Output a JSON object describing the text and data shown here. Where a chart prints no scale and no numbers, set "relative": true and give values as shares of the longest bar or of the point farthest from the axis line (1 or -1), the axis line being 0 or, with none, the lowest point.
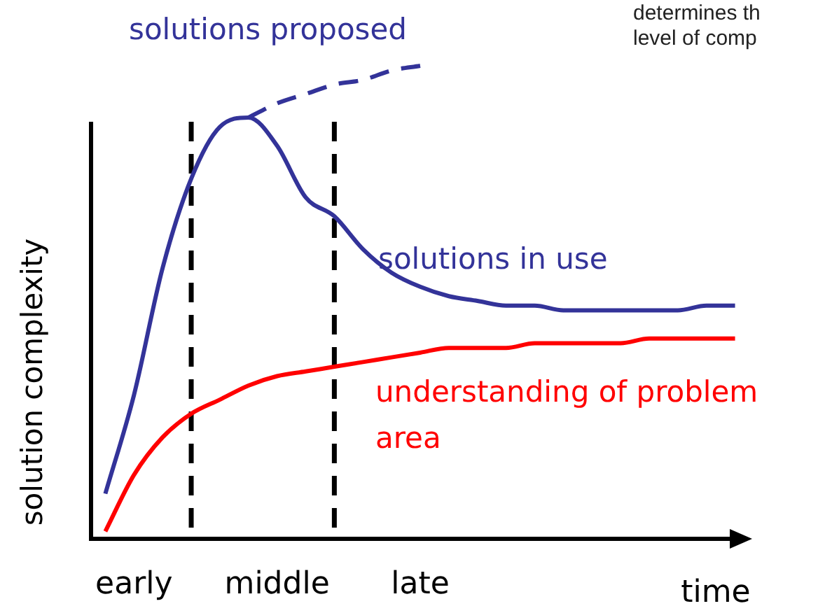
{
  "chart_data": {
    "type": "line",
    "relative": true,
    "ylabel": "solution complexity",
    "xlabel": "time",
    "categories": [
      null,
      "early",
      null,
      null,
      null,
      null,
      "middle",
      null,
      null,
      null,
      null,
      "late",
      null,
      null,
      null,
      null,
      null,
      null,
      null,
      null,
      null,
      null,
      null
    ],
    "series": [
      {
        "name": "solutions proposed",
        "color": "#333399",
        "line_style": "dashed",
        "values": [
          null,
          null,
          null,
          null,
          null,
          0.89,
          0.92,
          0.94,
          0.96,
          0.97,
          0.99,
          1.0,
          null,
          null,
          null,
          null,
          null,
          null,
          null,
          null,
          null,
          null,
          null
        ]
      },
      {
        "name": "solutions in use",
        "color": "#333399",
        "values": [
          0.09,
          0.3,
          0.57,
          0.76,
          0.87,
          0.89,
          0.83,
          0.72,
          0.68,
          0.61,
          0.56,
          0.53,
          0.51,
          0.5,
          0.49,
          0.49,
          0.48,
          0.48,
          0.48,
          0.48,
          0.48,
          0.49,
          0.49
        ]
      },
      {
        "name": "understanding of problem area",
        "color": "#ff0000",
        "values": [
          0.01,
          0.13,
          0.21,
          0.26,
          0.29,
          0.32,
          0.34,
          0.35,
          0.36,
          0.37,
          0.38,
          0.39,
          0.4,
          0.4,
          0.4,
          0.41,
          0.41,
          0.41,
          0.41,
          0.42,
          0.42,
          0.42,
          0.42
        ]
      }
    ],
    "annotations": [
      "determines th",
      "level of comp"
    ],
    "legend": false,
    "marker": "none"
  }
}
